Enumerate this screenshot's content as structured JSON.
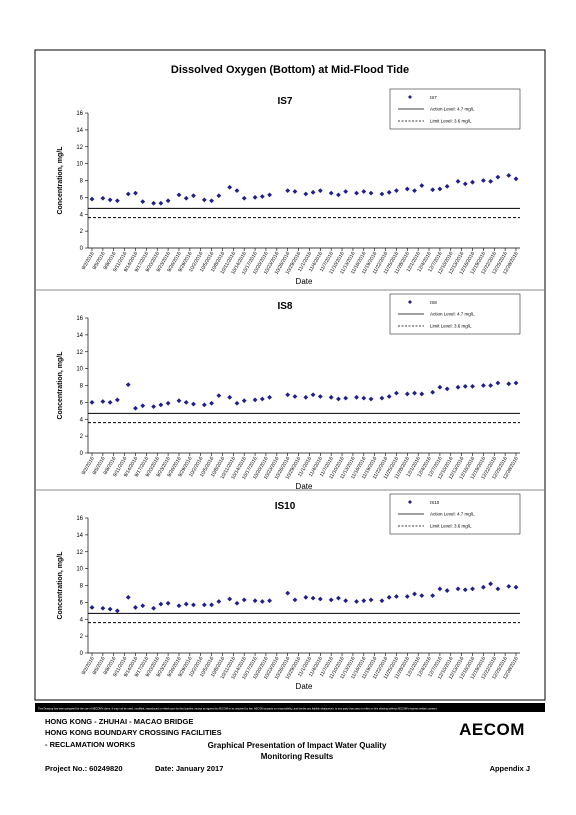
{
  "page_title": "Dissolved Oxygen (Bottom) at Mid-Flood Tide",
  "chart_data": [
    {
      "type": "scatter",
      "title": "IS7",
      "x_label": "Date",
      "y_label": "Concentration, mg/L",
      "ylim": [
        0,
        16
      ],
      "yticks": [
        0,
        2,
        4,
        6,
        8,
        10,
        12,
        14,
        16
      ],
      "xlim": [
        "9/2/2016",
        "12/28/2016"
      ],
      "xticks": [
        "9/2/2016",
        "9/5/2016",
        "9/8/2016",
        "9/11/2016",
        "9/14/2016",
        "9/17/2016",
        "9/20/2016",
        "9/23/2016",
        "9/26/2016",
        "9/29/2016",
        "10/2/2016",
        "10/5/2016",
        "10/8/2016",
        "10/11/2016",
        "10/14/2016",
        "10/17/2016",
        "10/20/2016",
        "10/23/2016",
        "10/26/2016",
        "10/29/2016",
        "11/1/2016",
        "11/4/2016",
        "11/7/2016",
        "11/10/2016",
        "11/13/2016",
        "11/16/2016",
        "11/19/2016",
        "11/22/2016",
        "11/25/2016",
        "11/28/2016",
        "12/1/2016",
        "12/4/2016",
        "12/7/2016",
        "12/10/2016",
        "12/13/2016",
        "12/16/2016",
        "12/19/2016",
        "12/22/2016",
        "12/25/2016",
        "12/28/2016"
      ],
      "x": [
        "9/2/2016",
        "9/5/2016",
        "9/7/2016",
        "9/9/2016",
        "9/12/2016",
        "9/14/2016",
        "9/16/2016",
        "9/19/2016",
        "9/21/2016",
        "9/23/2016",
        "9/26/2016",
        "9/28/2016",
        "9/30/2016",
        "10/3/2016",
        "10/5/2016",
        "10/7/2016",
        "10/10/2016",
        "10/12/2016",
        "10/14/2016",
        "10/17/2016",
        "10/19/2016",
        "10/21/2016",
        "10/26/2016",
        "10/28/2016",
        "10/31/2016",
        "11/2/2016",
        "11/4/2016",
        "11/7/2016",
        "11/9/2016",
        "11/11/2016",
        "11/14/2016",
        "11/16/2016",
        "11/18/2016",
        "11/21/2016",
        "11/23/2016",
        "11/25/2016",
        "11/28/2016",
        "11/30/2016",
        "12/2/2016",
        "12/5/2016",
        "12/7/2016",
        "12/9/2016",
        "12/12/2016",
        "12/14/2016",
        "12/16/2016",
        "12/19/2016",
        "12/21/2016",
        "12/23/2016",
        "12/26/2016",
        "12/28/2016"
      ],
      "series": [
        {
          "name": "IS7",
          "color": "#1f1f8f",
          "values": [
            5.8,
            5.9,
            5.7,
            5.6,
            6.4,
            6.5,
            5.5,
            5.3,
            5.3,
            5.6,
            6.3,
            5.9,
            6.2,
            5.7,
            5.6,
            6.2,
            7.2,
            6.8,
            5.9,
            6.0,
            6.1,
            6.3,
            6.8,
            6.7,
            6.4,
            6.6,
            6.8,
            6.5,
            6.3,
            6.7,
            6.5,
            6.7,
            6.5,
            6.4,
            6.6,
            6.8,
            7.0,
            6.8,
            7.4,
            6.9,
            7.0,
            7.3,
            7.9,
            7.6,
            7.8,
            8.0,
            7.9,
            8.4,
            8.6,
            8.2
          ]
        }
      ],
      "ref_lines": [
        {
          "name": "Action Level: 4.7 mg/L",
          "value": 4.7,
          "style": "solid"
        },
        {
          "name": "Limit Level: 3.6 mg/L",
          "value": 3.6,
          "style": "dashed"
        }
      ]
    },
    {
      "type": "scatter",
      "title": "IS8",
      "x_label": "Date",
      "y_label": "Concentration, mg/L",
      "ylim": [
        0,
        16
      ],
      "yticks": [
        0,
        2,
        4,
        6,
        8,
        10,
        12,
        14,
        16
      ],
      "xlim": [
        "9/2/2016",
        "12/28/2016"
      ],
      "xticks": [
        "9/2/2016",
        "9/5/2016",
        "9/8/2016",
        "9/11/2016",
        "9/14/2016",
        "9/17/2016",
        "9/20/2016",
        "9/23/2016",
        "9/26/2016",
        "9/29/2016",
        "10/2/2016",
        "10/5/2016",
        "10/8/2016",
        "10/11/2016",
        "10/14/2016",
        "10/17/2016",
        "10/20/2016",
        "10/23/2016",
        "10/26/2016",
        "10/29/2016",
        "11/1/2016",
        "11/4/2016",
        "11/7/2016",
        "11/10/2016",
        "11/13/2016",
        "11/16/2016",
        "11/19/2016",
        "11/22/2016",
        "11/25/2016",
        "11/28/2016",
        "12/1/2016",
        "12/4/2016",
        "12/7/2016",
        "12/10/2016",
        "12/13/2016",
        "12/16/2016",
        "12/19/2016",
        "12/22/2016",
        "12/25/2016",
        "12/28/2016"
      ],
      "x": [
        "9/2/2016",
        "9/5/2016",
        "9/7/2016",
        "9/9/2016",
        "9/12/2016",
        "9/14/2016",
        "9/16/2016",
        "9/19/2016",
        "9/21/2016",
        "9/23/2016",
        "9/26/2016",
        "9/28/2016",
        "9/30/2016",
        "10/3/2016",
        "10/5/2016",
        "10/7/2016",
        "10/10/2016",
        "10/12/2016",
        "10/14/2016",
        "10/17/2016",
        "10/19/2016",
        "10/21/2016",
        "10/26/2016",
        "10/28/2016",
        "10/31/2016",
        "11/2/2016",
        "11/4/2016",
        "11/7/2016",
        "11/9/2016",
        "11/11/2016",
        "11/14/2016",
        "11/16/2016",
        "11/18/2016",
        "11/21/2016",
        "11/23/2016",
        "11/25/2016",
        "11/28/2016",
        "11/30/2016",
        "12/2/2016",
        "12/5/2016",
        "12/7/2016",
        "12/9/2016",
        "12/12/2016",
        "12/14/2016",
        "12/16/2016",
        "12/19/2016",
        "12/21/2016",
        "12/23/2016",
        "12/26/2016",
        "12/28/2016"
      ],
      "series": [
        {
          "name": "IS8",
          "color": "#1f1f8f",
          "values": [
            6.0,
            6.1,
            6.0,
            6.3,
            8.1,
            5.3,
            5.6,
            5.5,
            5.7,
            5.9,
            6.2,
            6.0,
            5.8,
            5.7,
            5.9,
            6.8,
            6.6,
            5.9,
            6.2,
            6.3,
            6.4,
            6.6,
            6.9,
            6.7,
            6.6,
            6.9,
            6.7,
            6.6,
            6.4,
            6.5,
            6.6,
            6.5,
            6.4,
            6.5,
            6.7,
            7.1,
            7.0,
            7.1,
            7.0,
            7.2,
            7.8,
            7.6,
            7.8,
            7.9,
            7.9,
            8.0,
            8.0,
            8.3,
            8.2,
            8.3
          ]
        }
      ],
      "ref_lines": [
        {
          "name": "Action Level: 4.7 mg/L",
          "value": 4.7,
          "style": "solid"
        },
        {
          "name": "Limit Level: 3.6 mg/L",
          "value": 3.6,
          "style": "dashed"
        }
      ]
    },
    {
      "type": "scatter",
      "title": "IS10",
      "x_label": "Date",
      "y_label": "Concentration, mg/L",
      "ylim": [
        0,
        16
      ],
      "yticks": [
        0,
        2,
        4,
        6,
        8,
        10,
        12,
        14,
        16
      ],
      "xlim": [
        "9/2/2016",
        "12/28/2016"
      ],
      "xticks": [
        "9/2/2016",
        "9/5/2016",
        "9/8/2016",
        "9/11/2016",
        "9/14/2016",
        "9/17/2016",
        "9/20/2016",
        "9/23/2016",
        "9/26/2016",
        "9/29/2016",
        "10/2/2016",
        "10/5/2016",
        "10/8/2016",
        "10/11/2016",
        "10/14/2016",
        "10/17/2016",
        "10/20/2016",
        "10/23/2016",
        "10/26/2016",
        "10/29/2016",
        "11/1/2016",
        "11/4/2016",
        "11/7/2016",
        "11/10/2016",
        "11/13/2016",
        "11/16/2016",
        "11/19/2016",
        "11/22/2016",
        "11/25/2016",
        "11/28/2016",
        "12/1/2016",
        "12/4/2016",
        "12/7/2016",
        "12/10/2016",
        "12/13/2016",
        "12/16/2016",
        "12/19/2016",
        "12/22/2016",
        "12/25/2016",
        "12/28/2016"
      ],
      "x": [
        "9/2/2016",
        "9/5/2016",
        "9/7/2016",
        "9/9/2016",
        "9/12/2016",
        "9/14/2016",
        "9/16/2016",
        "9/19/2016",
        "9/21/2016",
        "9/23/2016",
        "9/26/2016",
        "9/28/2016",
        "9/30/2016",
        "10/3/2016",
        "10/5/2016",
        "10/7/2016",
        "10/10/2016",
        "10/12/2016",
        "10/14/2016",
        "10/17/2016",
        "10/19/2016",
        "10/21/2016",
        "10/26/2016",
        "10/28/2016",
        "10/31/2016",
        "11/2/2016",
        "11/4/2016",
        "11/7/2016",
        "11/9/2016",
        "11/11/2016",
        "11/14/2016",
        "11/16/2016",
        "11/18/2016",
        "11/21/2016",
        "11/23/2016",
        "11/25/2016",
        "11/28/2016",
        "11/30/2016",
        "12/2/2016",
        "12/5/2016",
        "12/7/2016",
        "12/9/2016",
        "12/12/2016",
        "12/14/2016",
        "12/16/2016",
        "12/19/2016",
        "12/21/2016",
        "12/23/2016",
        "12/26/2016",
        "12/28/2016"
      ],
      "series": [
        {
          "name": "IS10",
          "color": "#1f1f8f",
          "values": [
            5.4,
            5.3,
            5.2,
            5.0,
            6.6,
            5.4,
            5.6,
            5.3,
            5.8,
            5.9,
            5.6,
            5.8,
            5.7,
            5.7,
            5.7,
            6.1,
            6.4,
            5.9,
            6.3,
            6.2,
            6.1,
            6.2,
            7.1,
            6.3,
            6.6,
            6.5,
            6.4,
            6.3,
            6.5,
            6.2,
            6.1,
            6.2,
            6.3,
            6.2,
            6.6,
            6.7,
            6.7,
            7.0,
            6.8,
            6.8,
            7.6,
            7.4,
            7.6,
            7.5,
            7.6,
            7.8,
            8.2,
            7.6,
            7.9,
            7.8
          ]
        }
      ],
      "ref_lines": [
        {
          "name": "Action Level: 4.7 mg/L",
          "value": 4.7,
          "style": "solid"
        },
        {
          "name": "Limit Level: 3.6 mg/L",
          "value": 3.6,
          "style": "dashed"
        }
      ]
    }
  ],
  "footer": {
    "disclaimer": "This Drawing has been prepared for the use of AECOM's client. It may not be used, modified, reproduced or relied upon by third parties, except as agreed by AECOM or as required by law. AECOM accepts no responsibility, and denies any liability whatsoever, to any party that uses or relies on this drawing without AECOM's express written consent.",
    "project_lines": [
      "HONG KONG - ZHUHAI - MACAO BRIDGE",
      "HONG KONG BOUNDARY CROSSING FACILITIES",
      "- RECLAMATION WORKS"
    ],
    "logo": "AECOM",
    "drawing_title": [
      "Graphical Presentation of Impact Water Quality",
      "Monitoring Results"
    ],
    "project_no": "Project No.: 60249820",
    "date": "Date: January 2017",
    "appendix": "Appendix J"
  }
}
